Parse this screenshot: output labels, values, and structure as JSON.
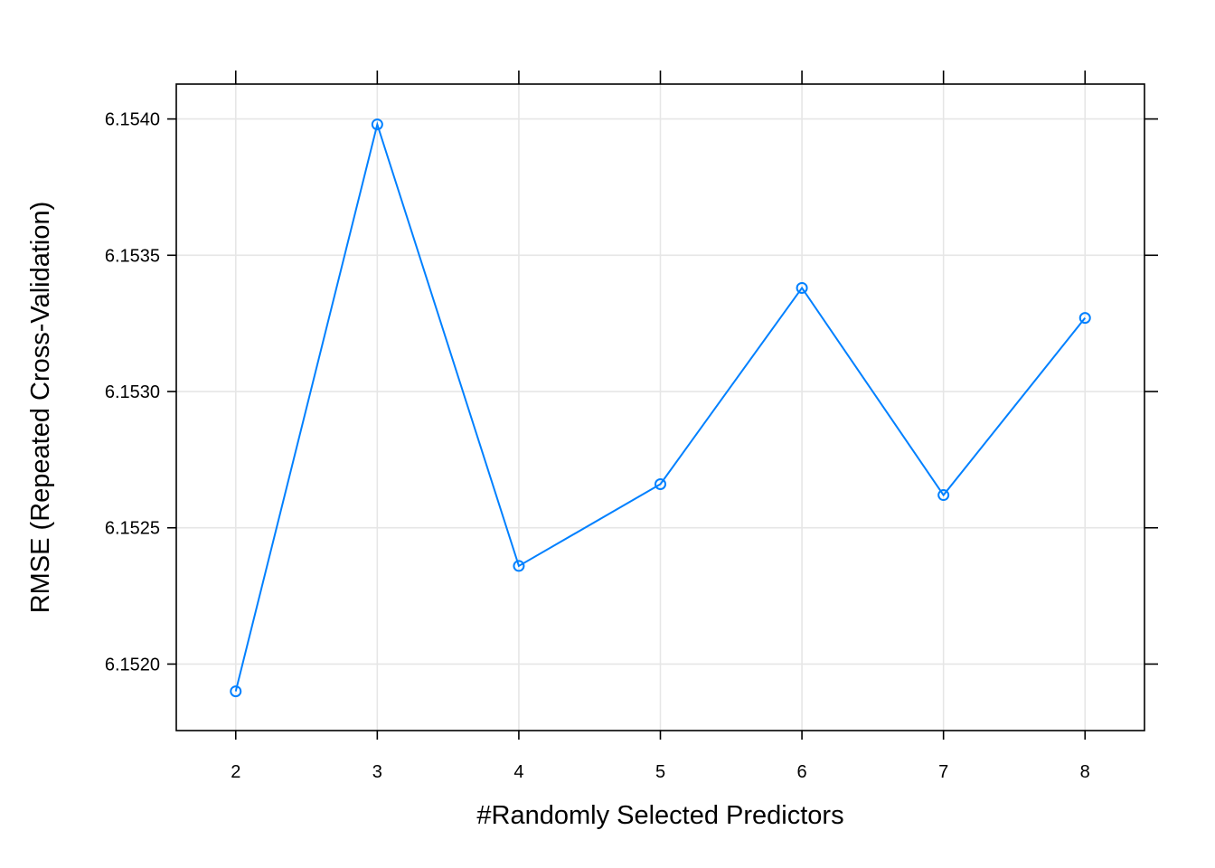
{
  "chart_data": {
    "type": "line",
    "xlabel": "#Randomly Selected Predictors",
    "ylabel": "RMSE (Repeated Cross-Validation)",
    "x": [
      2,
      3,
      4,
      5,
      6,
      7,
      8
    ],
    "series": [
      {
        "values": [
          6.1519,
          6.15398,
          6.15236,
          6.15266,
          6.15338,
          6.15262,
          6.15327
        ]
      }
    ],
    "x_ticks": [
      2,
      3,
      4,
      5,
      6,
      7,
      8
    ],
    "y_ticks": [
      6.152,
      6.1525,
      6.153,
      6.1535,
      6.154
    ],
    "y_tick_labels": [
      "6.1520",
      "6.1525",
      "6.1530",
      "6.1535",
      "6.1540"
    ],
    "xlim": [
      1.58,
      8.42
    ],
    "ylim": [
      6.151756,
      6.154128
    ],
    "grid": true,
    "marker": "open-circle",
    "colors": {
      "line": "#0080ff",
      "grid": "#e6e6e6",
      "axis": "#000000"
    }
  }
}
